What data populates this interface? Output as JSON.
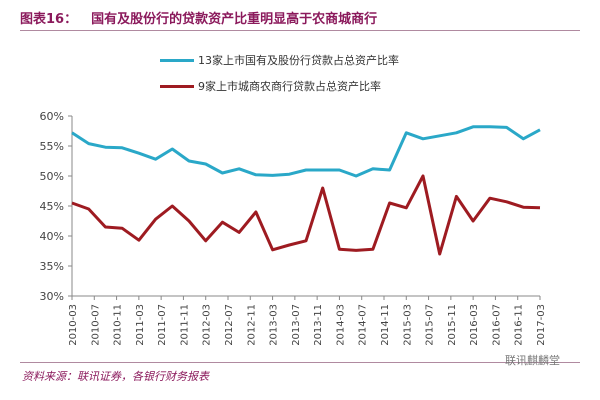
{
  "header": {
    "figure_label": "图表16：",
    "title": "国有及股份行的贷款资产比重明显高于农商城商行"
  },
  "footer": {
    "source": "资料来源：联讯证券，各银行财务报表",
    "watermark": "联讯麒麟堂"
  },
  "colors": {
    "series1": "#2aa8c8",
    "series2": "#9e1b21",
    "axis": "#888888",
    "title": "#8b1a5c"
  },
  "chart_data": {
    "type": "line",
    "ylim": [
      0.3,
      0.6
    ],
    "y_ticks": [
      "30%",
      "35%",
      "40%",
      "45%",
      "50%",
      "55%",
      "60%"
    ],
    "x_labels": [
      "2010-03",
      "2010-07",
      "2010-11",
      "2011-03",
      "2011-07",
      "2011-11",
      "2012-03",
      "2012-07",
      "2012-11",
      "2013-03",
      "2013-07",
      "2013-11",
      "2014-03",
      "2014-07",
      "2014-11",
      "2015-03",
      "2015-07",
      "2015-11",
      "2016-03",
      "2016-07",
      "2016-11",
      "2017-03"
    ],
    "x": [
      "2010-03",
      "2010-06",
      "2010-09",
      "2010-12",
      "2011-03",
      "2011-06",
      "2011-09",
      "2011-12",
      "2012-03",
      "2012-06",
      "2012-09",
      "2012-12",
      "2013-03",
      "2013-06",
      "2013-09",
      "2013-12",
      "2014-03",
      "2014-06",
      "2014-09",
      "2014-12",
      "2015-03",
      "2015-06",
      "2015-09",
      "2015-12",
      "2016-03",
      "2016-06",
      "2016-09",
      "2016-12",
      "2017-03"
    ],
    "series": [
      {
        "name": "13家上市国有及股份行贷款占总资产比率",
        "values": [
          0.572,
          0.554,
          0.548,
          0.547,
          0.538,
          0.528,
          0.545,
          0.525,
          0.52,
          0.505,
          0.512,
          0.502,
          0.501,
          0.503,
          0.51,
          0.51,
          0.51,
          0.5,
          0.512,
          0.51,
          0.572,
          0.562,
          0.567,
          0.572,
          0.582,
          0.582,
          0.581,
          0.562,
          0.577
        ]
      },
      {
        "name": "9家上市城商农商行贷款占总资产比率",
        "values": [
          0.455,
          0.445,
          0.415,
          0.413,
          0.393,
          0.428,
          0.45,
          0.425,
          0.392,
          0.423,
          0.406,
          0.44,
          0.377,
          0.385,
          0.392,
          0.48,
          0.378,
          0.376,
          0.378,
          0.455,
          0.447,
          0.5,
          0.37,
          0.466,
          0.425,
          0.463,
          0.457,
          0.448,
          0.447
        ]
      }
    ]
  }
}
